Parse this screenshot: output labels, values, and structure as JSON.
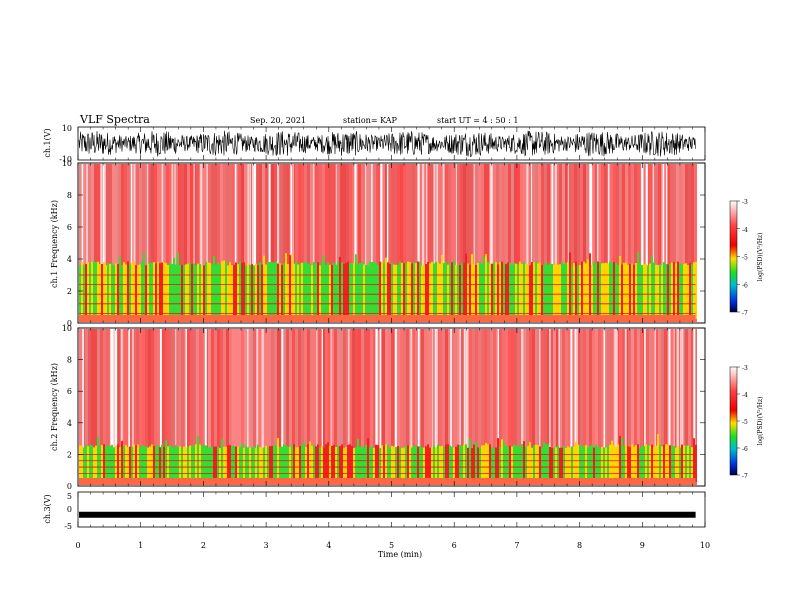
{
  "header": {
    "title": "VLF Spectra",
    "date": "Sep. 20, 2021",
    "station": "station= KAP",
    "start": "start  UT =   4 : 50 : 1"
  },
  "colors": {
    "spectrogram_low": "#22dd22",
    "spectrogram_mid": "#ffdd00",
    "spectrogram_high": "#ee1111",
    "background": "#ffffff",
    "trace": "#000000"
  },
  "chart_data": [
    {
      "type": "line",
      "panel": "ch1-waveform",
      "ylabel": "ch.1(V)",
      "ylim": [
        -10,
        10
      ],
      "yticks": [
        "10",
        "-10"
      ],
      "xlim": [
        0,
        10
      ],
      "description_values": {
        "x_end_min": 9.85,
        "amplitude_v": 8
      }
    },
    {
      "type": "heatmap",
      "panel": "ch1-spectrogram",
      "ylabel": "ch.1 Frequency (kHz)",
      "ylim": [
        0,
        10
      ],
      "yticks": [
        "0",
        "2",
        "4",
        "6",
        "8",
        "10"
      ],
      "xlim": [
        0,
        10
      ],
      "green_band_top_khz": 3.6,
      "colorbar": {
        "label": "log(PSD)(V²/Hz)",
        "range": [
          -7,
          -3
        ],
        "ticks": [
          "-3",
          "-4",
          "-5",
          "-6",
          "-7"
        ]
      }
    },
    {
      "type": "heatmap",
      "panel": "ch2-spectrogram",
      "ylabel": "ch.2 Frequency (kHz)",
      "ylim": [
        0,
        10
      ],
      "yticks": [
        "0",
        "2",
        "4",
        "6",
        "8",
        "10"
      ],
      "xlim": [
        0,
        10
      ],
      "green_band_top_khz": 2.4,
      "colorbar": {
        "label": "log(PSD)(V²/Hz)",
        "range": [
          -7,
          -3
        ],
        "ticks": [
          "-3",
          "-4",
          "-5",
          "-6",
          "-7"
        ]
      }
    },
    {
      "type": "line",
      "panel": "ch3-waveform",
      "ylabel": "ch.3(V)",
      "ylim": [
        -5,
        5
      ],
      "yticks": [
        "5",
        "0",
        "-5"
      ],
      "level_v": -1.5,
      "xlim": [
        0,
        10
      ]
    }
  ],
  "xaxis": {
    "label": "Time (min)",
    "ticks": [
      "0",
      "1",
      "2",
      "3",
      "4",
      "5",
      "6",
      "7",
      "8",
      "9",
      "10"
    ]
  }
}
